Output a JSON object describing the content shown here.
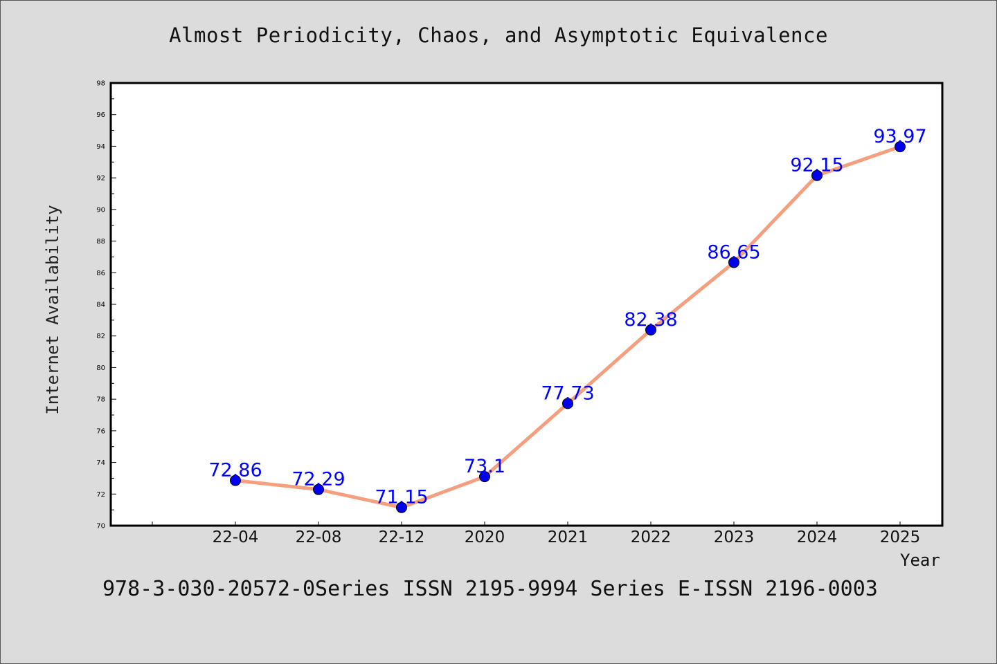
{
  "chart_data": {
    "type": "line",
    "title": "Almost Periodicity, Chaos, and Asymptotic Equivalence",
    "xlabel": "Year",
    "ylabel": "Internet Availability",
    "categories": [
      "22-04",
      "22-08",
      "22-12",
      "2020",
      "2021",
      "2022",
      "2023",
      "2024",
      "2025"
    ],
    "values": [
      72.86,
      72.29,
      71.15,
      73.1,
      77.73,
      82.38,
      86.65,
      92.15,
      93.97
    ],
    "value_labels": [
      "72.86",
      "72.29",
      "71.15",
      "73.1",
      "77.73",
      "82.38",
      "86.65",
      "92.15",
      "93.97"
    ],
    "ylim": [
      70,
      98
    ],
    "yticks": [
      "70",
      "72",
      "74",
      "76",
      "78",
      "80",
      "82",
      "84",
      "86",
      "88",
      "90",
      "92",
      "94",
      "96",
      "98"
    ],
    "grid": false,
    "line_color": "#f4a07f",
    "marker_color": "#0000ee",
    "label_color": "#0000ff",
    "footer": "978-3-030-20572-0Series ISSN 2195-9994 Series E-ISSN 2196-0003"
  }
}
